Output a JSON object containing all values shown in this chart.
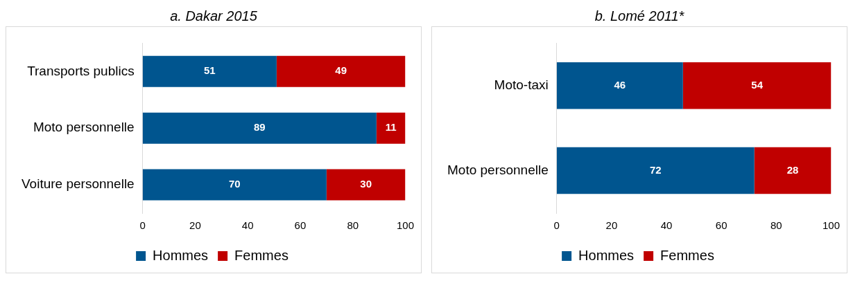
{
  "chart_data": [
    {
      "type": "bar",
      "title": "a. Dakar 2015",
      "orientation": "horizontal",
      "stacked": true,
      "categories": [
        "Transports publics",
        "Moto personnelle",
        "Voiture personnelle"
      ],
      "series": [
        {
          "name": "Hommes",
          "color": "#00558f",
          "values": [
            51,
            89,
            70
          ]
        },
        {
          "name": "Femmes",
          "color": "#c00000",
          "values": [
            49,
            11,
            30
          ]
        }
      ],
      "xlim": [
        0,
        100
      ],
      "xticks": [
        0,
        20,
        40,
        60,
        80,
        100
      ],
      "data_labels": true,
      "legend": "bottom"
    },
    {
      "type": "bar",
      "title": "b. Lomé 2011*",
      "orientation": "horizontal",
      "stacked": true,
      "categories": [
        "Moto-taxi",
        "Moto personnelle"
      ],
      "series": [
        {
          "name": "Hommes",
          "color": "#00558f",
          "values": [
            46,
            72
          ]
        },
        {
          "name": "Femmes",
          "color": "#c00000",
          "values": [
            54,
            28
          ]
        }
      ],
      "xlim": [
        0,
        100
      ],
      "xticks": [
        0,
        20,
        40,
        60,
        80,
        100
      ],
      "data_labels": true,
      "legend": "bottom"
    }
  ]
}
